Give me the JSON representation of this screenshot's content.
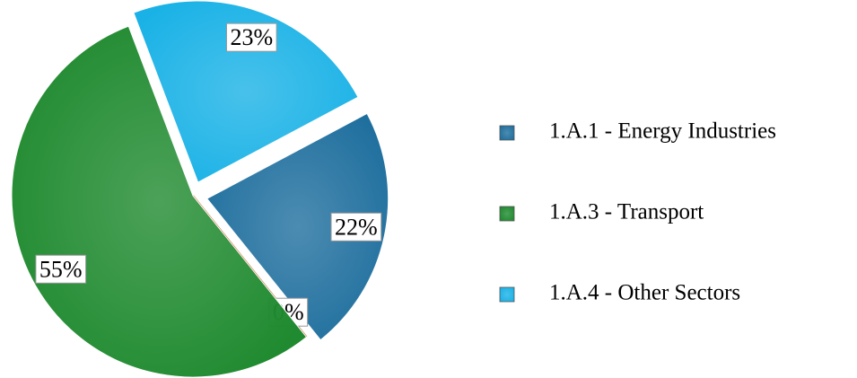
{
  "chart_data": {
    "type": "pie",
    "categories": [
      "1.A.1 - Energy Industries",
      null,
      "1.A.3 - Transport",
      "1.A.4 - Other Sectors"
    ],
    "values": [
      22,
      0,
      55,
      23
    ],
    "value_labels": [
      "22%",
      "0%",
      "55%",
      "23%"
    ],
    "colors": [
      "#1f6f9e",
      "#c0652d",
      "#1f8a2f",
      "#1ab2e6"
    ],
    "legend": "right"
  }
}
